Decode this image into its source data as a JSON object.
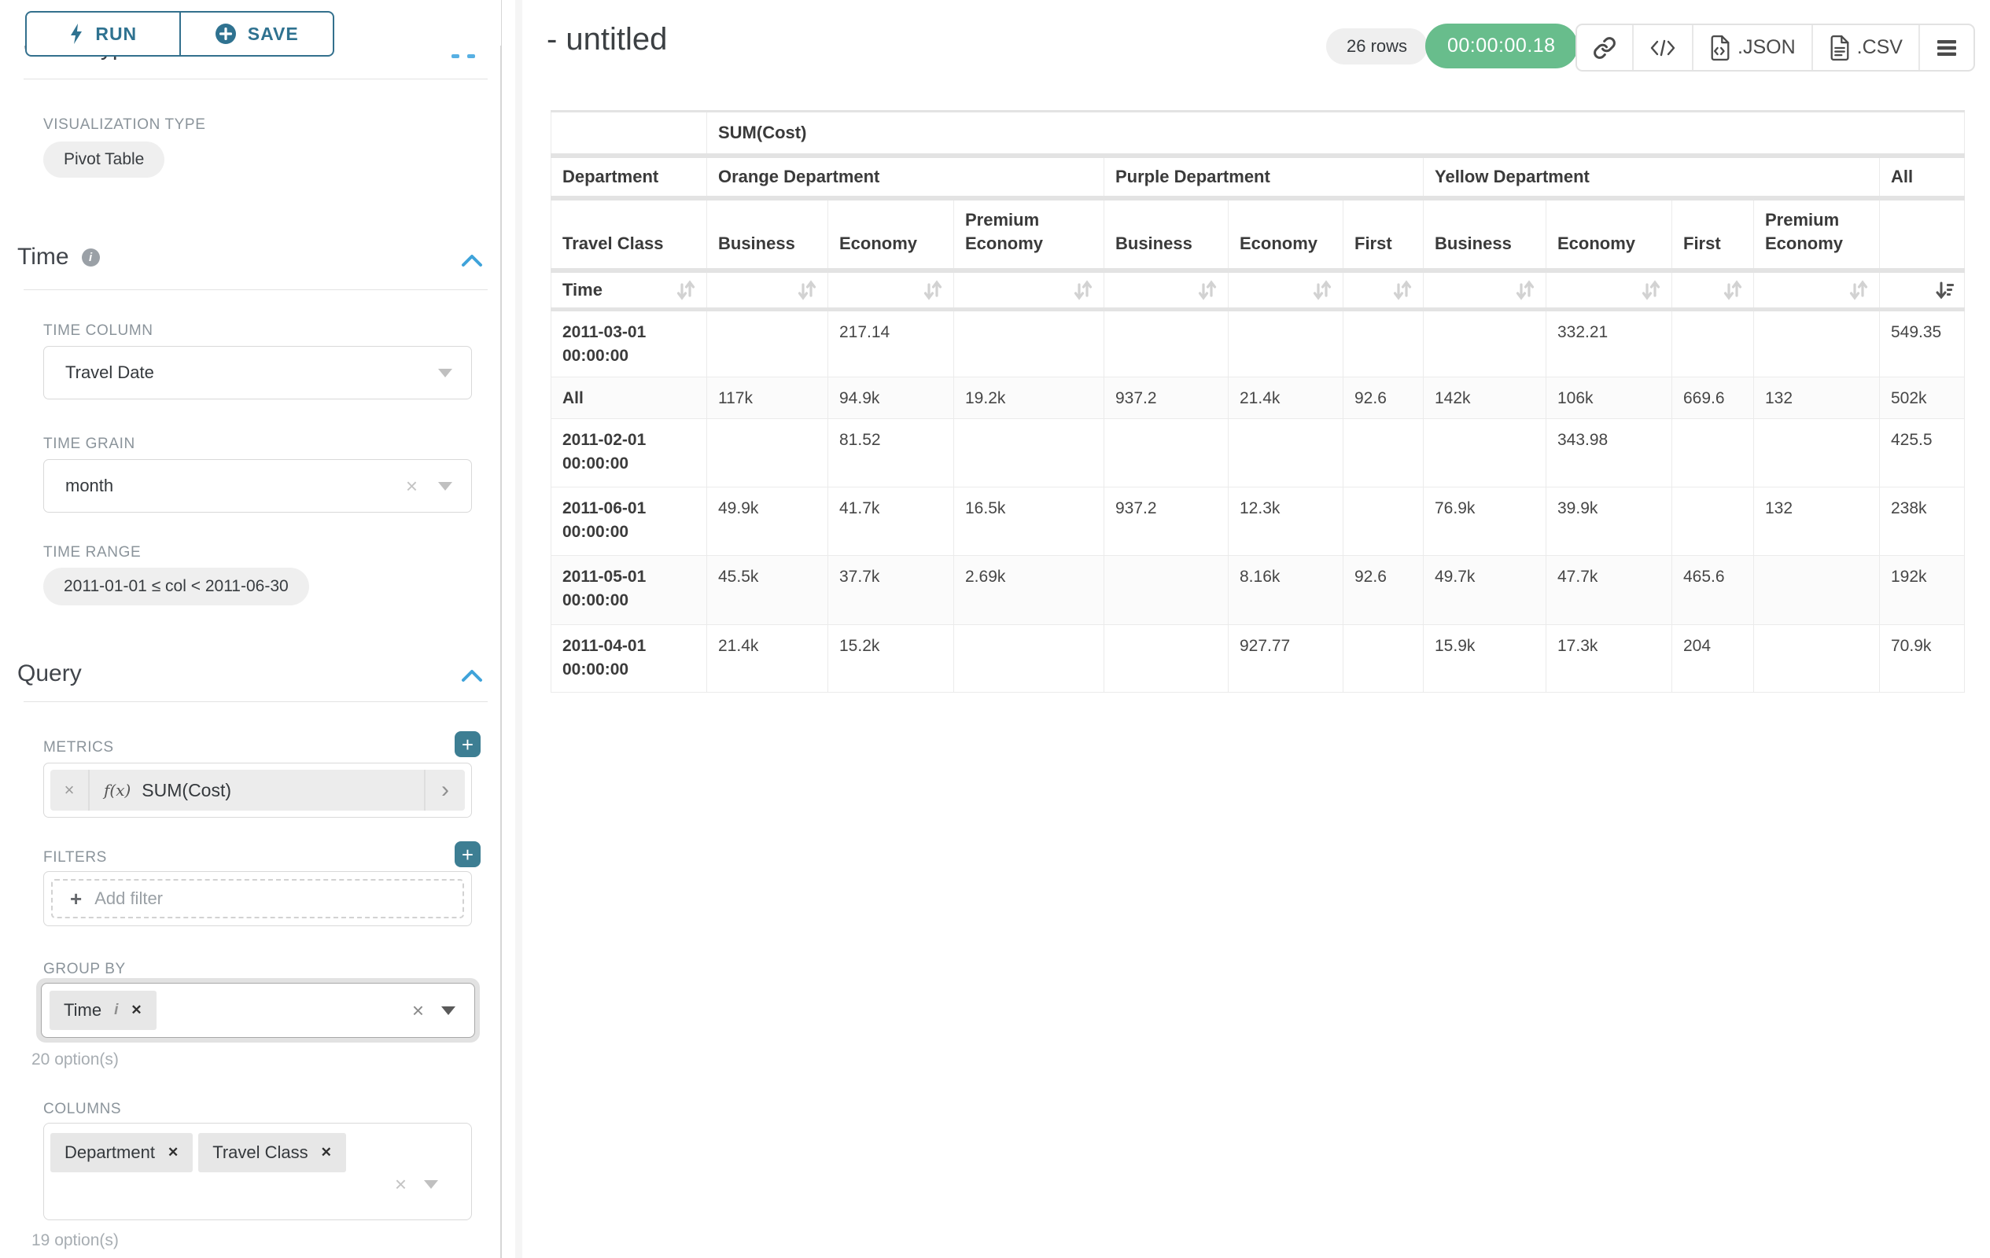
{
  "sidebar": {
    "run_label": "RUN",
    "save_label": "SAVE",
    "chart_type_heading": "Chart Type",
    "viz_type_label": "VISUALIZATION TYPE",
    "viz_type_value": "Pivot Table",
    "time_section_label": "Time",
    "time_column_label": "TIME COLUMN",
    "time_column_value": "Travel Date",
    "time_grain_label": "TIME GRAIN",
    "time_grain_value": "month",
    "time_range_label": "TIME RANGE",
    "time_range_value": "2011-01-01 ≤ col < 2011-06-30",
    "query_section_label": "Query",
    "metrics_label": "METRICS",
    "metric_fx": "f(x)",
    "metric_value": "SUM(Cost)",
    "filters_label": "FILTERS",
    "add_filter_label": "Add filter",
    "groupby_label": "GROUP BY",
    "groupby_value": "Time",
    "groupby_options_note": "20 option(s)",
    "columns_label": "COLUMNS",
    "columns_values": [
      "Department",
      "Travel Class"
    ],
    "columns_options_note": "19 option(s)"
  },
  "header": {
    "title": "- untitled",
    "rows_badge": "26 rows",
    "timer": "00:00:00.18",
    "json_label": ".JSON",
    "csv_label": ".CSV"
  },
  "icons": {
    "run": "lightning-bolt",
    "save": "plus-circle",
    "time_info": "info-circle",
    "section_collapse": "chevron-up",
    "select_caret": "caret-down",
    "clear": "x",
    "metric_expand": "chevron-right",
    "share": "link",
    "embed": "code",
    "json_export": "file-code",
    "csv_export": "file-text",
    "menu": "hamburger",
    "sort": "sort-arrows",
    "sort_active": "sort-descending"
  },
  "colors": {
    "accent_teal": "#3d7e93",
    "accent_blue": "#3fa3da",
    "success_green": "#68bd8c",
    "badge_gray": "#efefef"
  },
  "pivot": {
    "metric_header": "SUM(Cost)",
    "dept_row_label": "Department",
    "class_row_label": "Travel Class",
    "time_row_label": "Time",
    "all_label": "All",
    "groups": [
      {
        "name": "Orange Department",
        "classes": [
          "Business",
          "Economy",
          "Premium Economy"
        ]
      },
      {
        "name": "Purple Department",
        "classes": [
          "Business",
          "Economy",
          "First"
        ]
      },
      {
        "name": "Yellow Department",
        "classes": [
          "Business",
          "Economy",
          "First",
          "Premium Economy"
        ]
      }
    ],
    "rows": [
      {
        "time": "2011-03-01 00:00:00",
        "values": [
          "",
          "217.14",
          "",
          "",
          "",
          "",
          "",
          "332.21",
          "",
          "",
          "549.35"
        ]
      },
      {
        "time": "All",
        "values": [
          "117k",
          "94.9k",
          "19.2k",
          "937.2",
          "21.4k",
          "92.6",
          "142k",
          "106k",
          "669.6",
          "132",
          "502k"
        ]
      },
      {
        "time": "2011-02-01 00:00:00",
        "values": [
          "",
          "81.52",
          "",
          "",
          "",
          "",
          "",
          "343.98",
          "",
          "",
          "425.5"
        ]
      },
      {
        "time": "2011-06-01 00:00:00",
        "values": [
          "49.9k",
          "41.7k",
          "16.5k",
          "937.2",
          "12.3k",
          "",
          "76.9k",
          "39.9k",
          "",
          "132",
          "238k"
        ]
      },
      {
        "time": "2011-05-01 00:00:00",
        "values": [
          "45.5k",
          "37.7k",
          "2.69k",
          "",
          "8.16k",
          "92.6",
          "49.7k",
          "47.7k",
          "465.6",
          "",
          "192k"
        ]
      },
      {
        "time": "2011-04-01 00:00:00",
        "values": [
          "21.4k",
          "15.2k",
          "",
          "",
          "927.77",
          "",
          "15.9k",
          "17.3k",
          "204",
          "",
          "70.9k"
        ]
      }
    ]
  }
}
